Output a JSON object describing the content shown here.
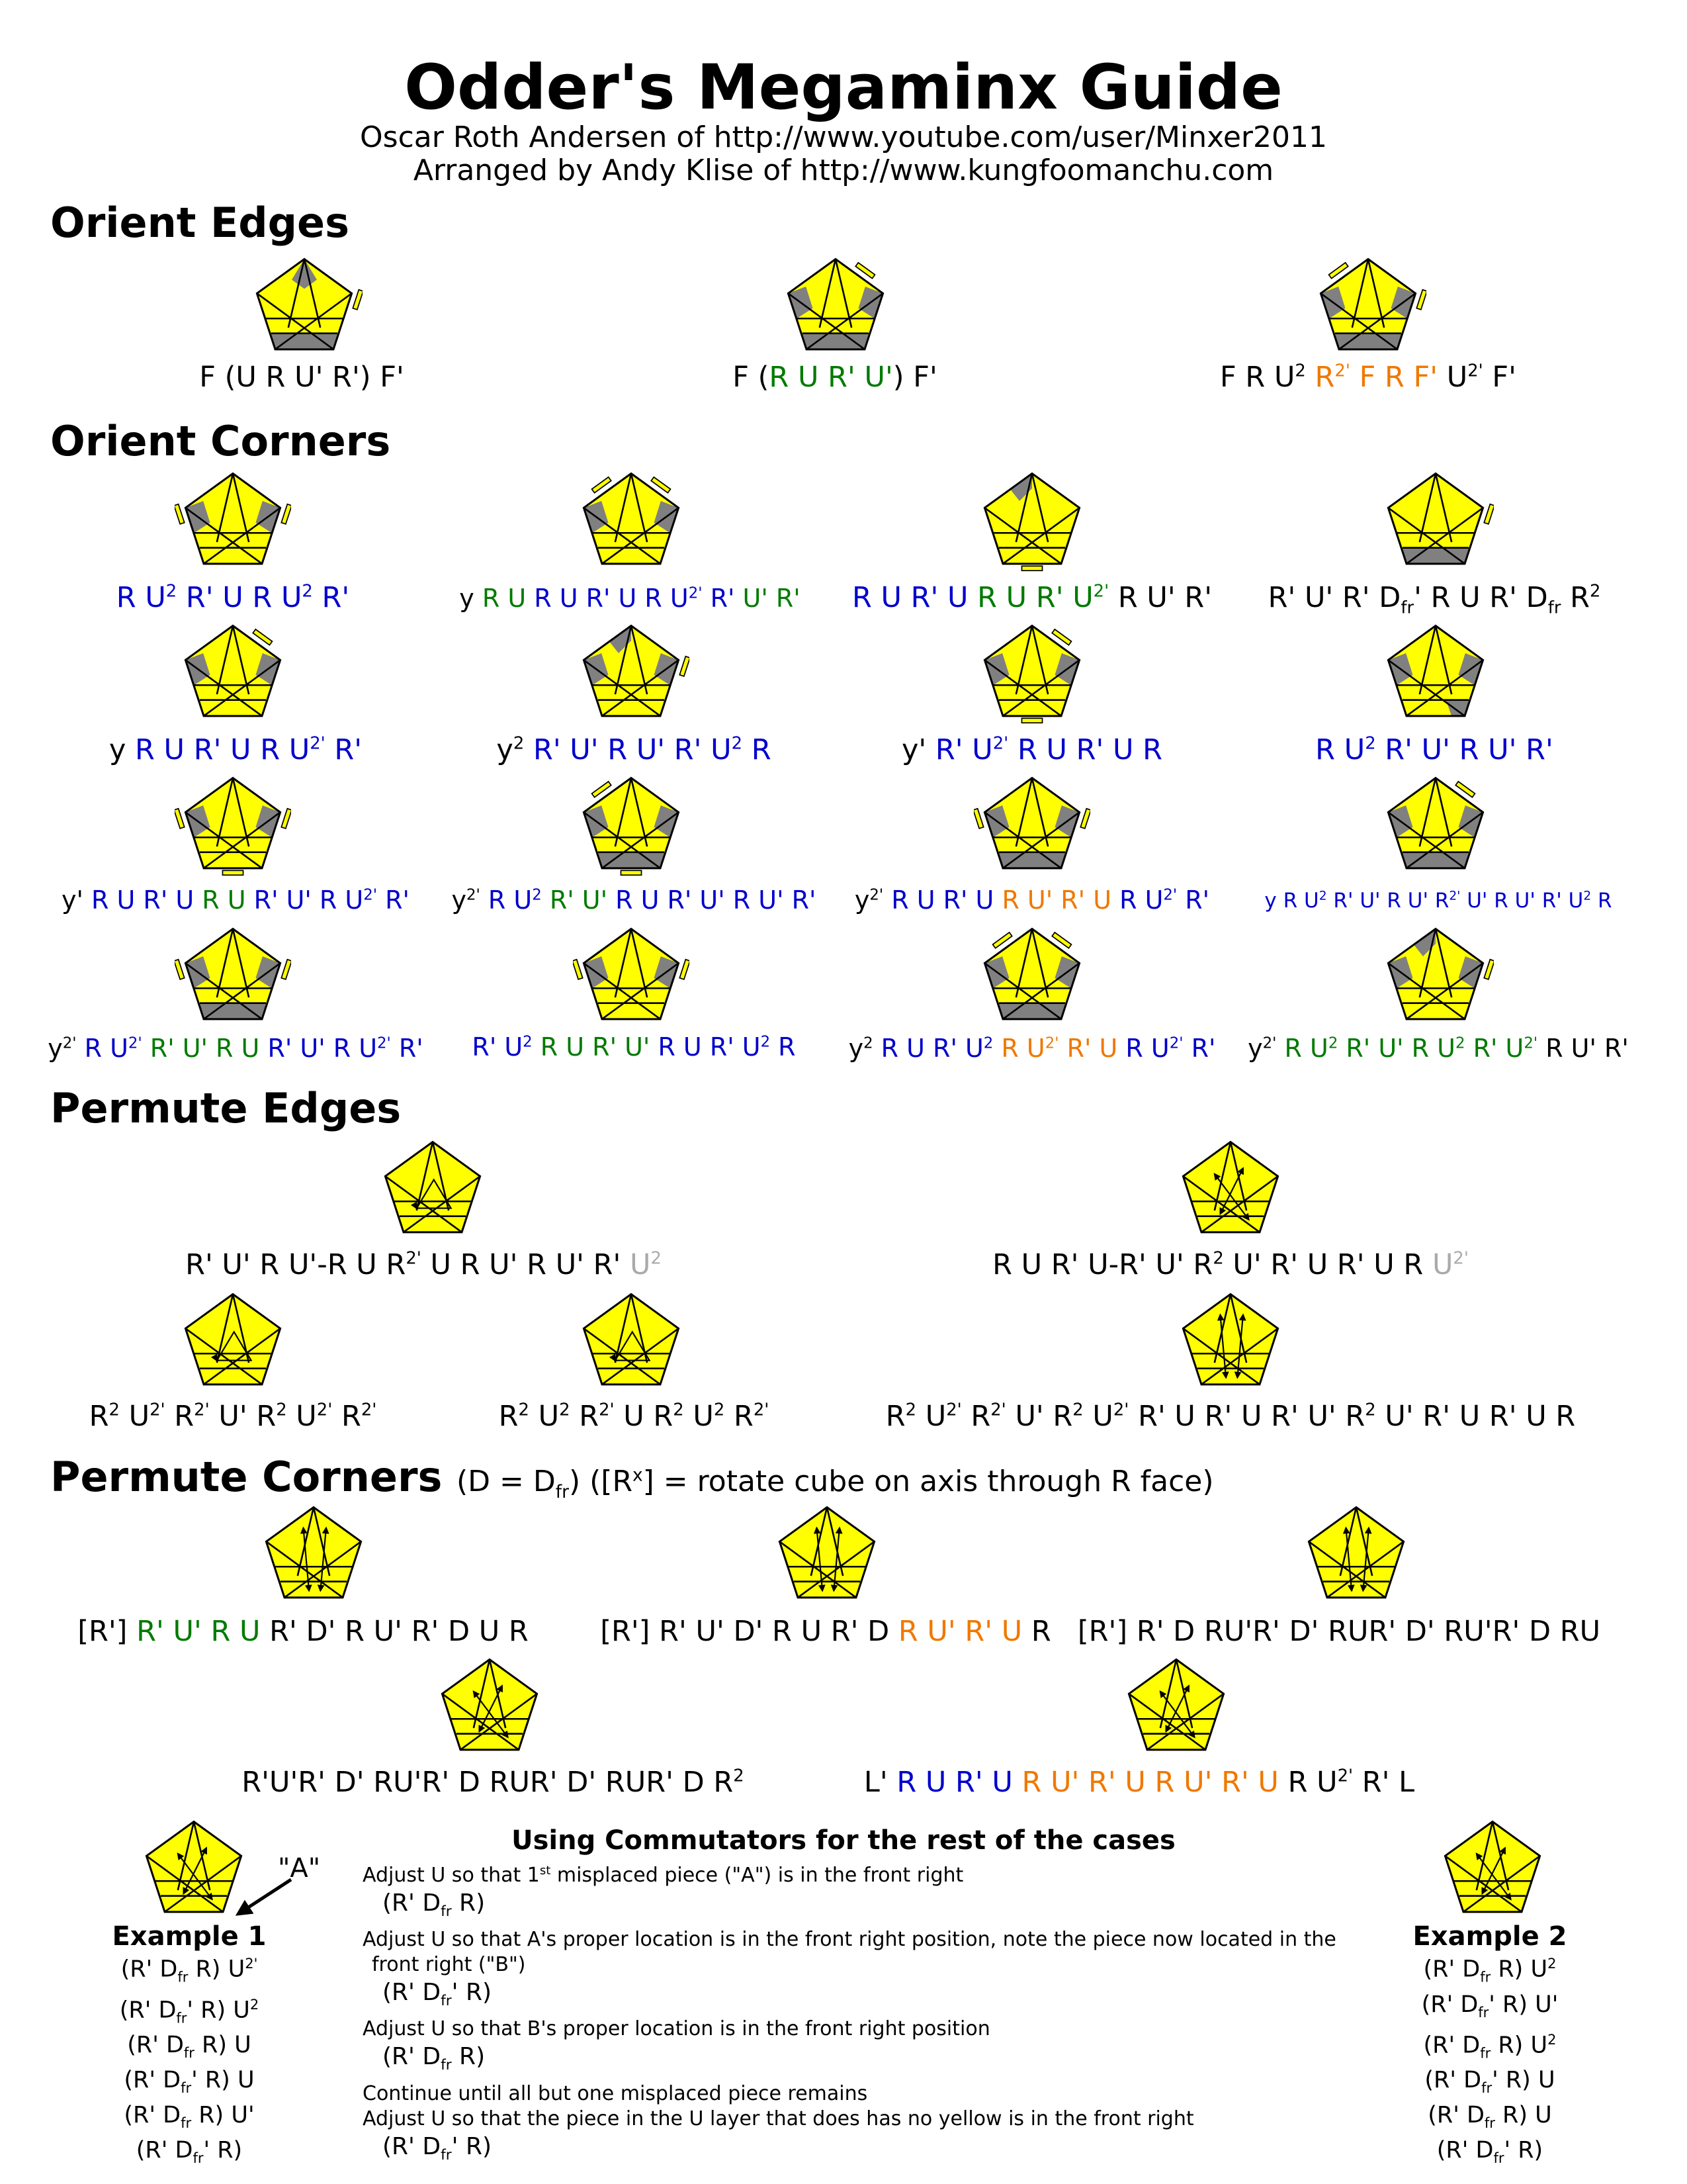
{
  "title": "Odder's Megaminx Guide",
  "credit1": "Oscar Roth Andersen of http://www.youtube.com/user/Minxer2011",
  "credit2": "Arranged by Andy Klise of http://www.kungfoomanchu.com",
  "colors": {
    "yellow": "#ffff00",
    "gray": "#808080",
    "blue": "#0000cc",
    "green": "#007a00",
    "orange": "#f07800",
    "lightgray": "#aaaaaa"
  },
  "sections": {
    "orient_edges": "Orient Edges",
    "orient_corners": "Orient Corners",
    "permute_edges": "Permute Edges",
    "permute_corners": "Permute Corners",
    "permute_corners_note": "(D = D",
    "permute_corners_note_sub": "fr",
    "permute_corners_note2": ") ([R",
    "permute_corners_note_sup": "x",
    "permute_corners_note3": "] = rotate cube on axis through R face)"
  },
  "orient_edges": [
    "F (U R U' R') F'",
    "F (R U R' U') F'",
    "F R U² R²' F R F' U²' F'"
  ],
  "orient_corners": [
    "R U² R' U R U² R'",
    "y R U R U R' U R U²' R' U' R'",
    "R U R' U R U R' U²' R U' R'",
    "R' U' R' Dfr' R U R' Dfr R²",
    "y R U R' U R U²' R'",
    "y² R' U' R U' R' U² R",
    "y' R' U²' R U R' U R",
    "R U² R' U' R U' R'",
    "y' R U R' U R U R' U' R U²' R'",
    "y²' R U² R' U' R U R' U' R U' R'",
    "y²' R U R' U R U' R' U R U²' R'",
    "y R U² R' U' R U' R²' U' R U' R' U² R",
    "y²' R U²' R' U' R U R' U' R U²' R'",
    "R' U² R U R' U' R U R' U² R",
    "y² R U R' U² R U²' R' U R U²' R'",
    "y²' R U² R' U' R U² R' U²' R U' R'"
  ],
  "permute_edges": [
    "R' U' R U'-R U R²' U R U' R U' R' U²",
    "R U R' U-R' U' R² U' R' U R' U R U²'",
    "R² U²' R²' U' R² U²' R²'",
    "R² U² R²' U R² U² R²'",
    "R² U²' R²' U' R² U²' R' U R' U R' U' R² U' R' U R' U R"
  ],
  "permute_corners": [
    "[R'] R' U' R U R' D' R U' R' D U R",
    "[R'] R' U' D' R U R' D R U' R' U R",
    "[R'] R' D RU'R' D' RUR' D' RU'R' D RU",
    "R'U'R' D' RU'R' D RUR' D' RUR' D R²",
    "L' R U R' U R U' R' U R U' R' U R U²' R' L"
  ],
  "commutators": {
    "heading": "Using Commutators for the rest of the cases",
    "label_a": "\"A\"",
    "lines": [
      "Adjust U so that 1st misplaced piece (\"A\") is in the front right",
      "(R' Dfr R)",
      "Adjust U so that A's proper location is in the front right position, note the piece now located in the",
      "front right (\"B\")",
      "(R' Dfr' R)",
      "Adjust U so that B's proper location is in the front right position",
      "(R' Dfr R)",
      "Continue until all but one misplaced piece remains",
      "Adjust U so that the piece in the U layer that does has no yellow is in the front right",
      "(R' Dfr' R)"
    ],
    "example1": {
      "label": "Example 1",
      "steps": [
        "(R' Dfr R) U²'",
        "(R' Dfr' R) U²",
        "(R' Dfr R) U",
        "(R' Dfr' R) U",
        "(R' Dfr R) U'",
        "(R' Dfr' R)"
      ]
    },
    "example2": {
      "label": "Example 2",
      "steps": [
        "(R' Dfr R) U²",
        "(R' Dfr' R) U'",
        "(R' Dfr R) U²",
        "(R' Dfr' R) U",
        "(R' Dfr R) U",
        "(R' Dfr' R)"
      ]
    }
  }
}
